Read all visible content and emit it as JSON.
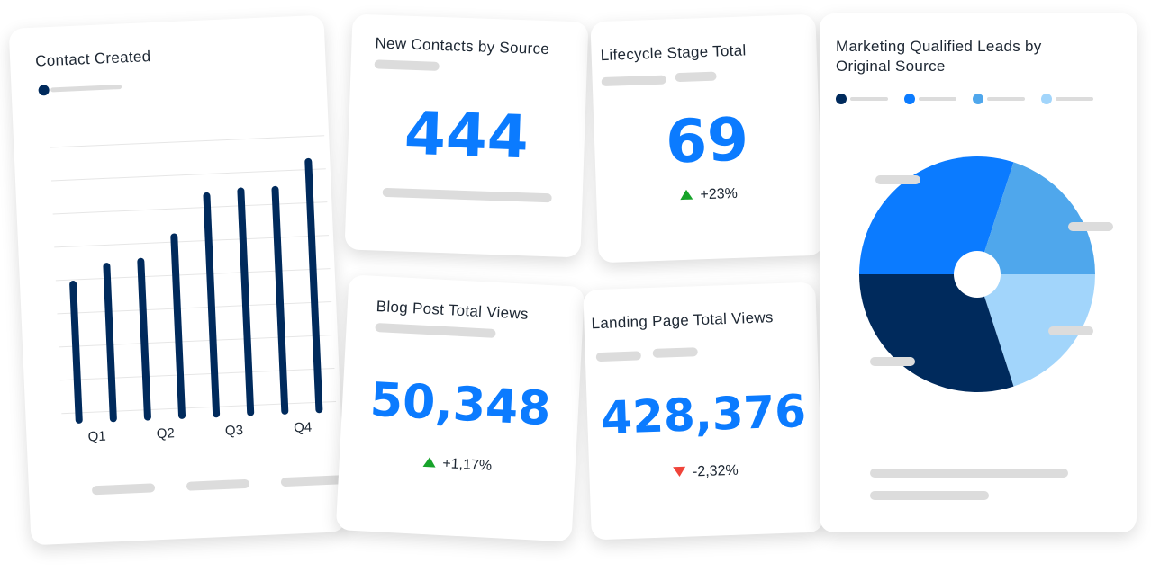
{
  "cards": {
    "contact_created": {
      "title": "Contact Created",
      "chart_data": {
        "type": "bar",
        "color": "#002a5c",
        "categories": [
          "Q1",
          null,
          "Q2",
          null,
          "Q3",
          null,
          "Q4",
          null
        ],
        "values": [
          3.9,
          4.4,
          4.5,
          5.2,
          6.4,
          6.5,
          6.5,
          7.3
        ],
        "ylim": [
          0,
          9
        ]
      }
    },
    "new_contacts": {
      "title": "New Contacts by Source",
      "value": "444"
    },
    "lifecycle": {
      "title": "Lifecycle Stage Total",
      "value": "69",
      "change": "+23%"
    },
    "blog_views": {
      "title": "Blog Post Total Views",
      "value": "50,348",
      "change": "+1,17%"
    },
    "landing_views": {
      "title": "Landing Page Total Views",
      "value": "428,376",
      "change": "-2,32%"
    },
    "mql": {
      "title": "Marketing Qualified Leads by Original Source",
      "chart_data": {
        "type": "pie",
        "values": [
          30,
          20,
          20,
          30
        ],
        "colors": [
          "#0b7bff",
          "#4fa7ec",
          "#a2d5fb",
          "#002a5c"
        ]
      }
    }
  }
}
